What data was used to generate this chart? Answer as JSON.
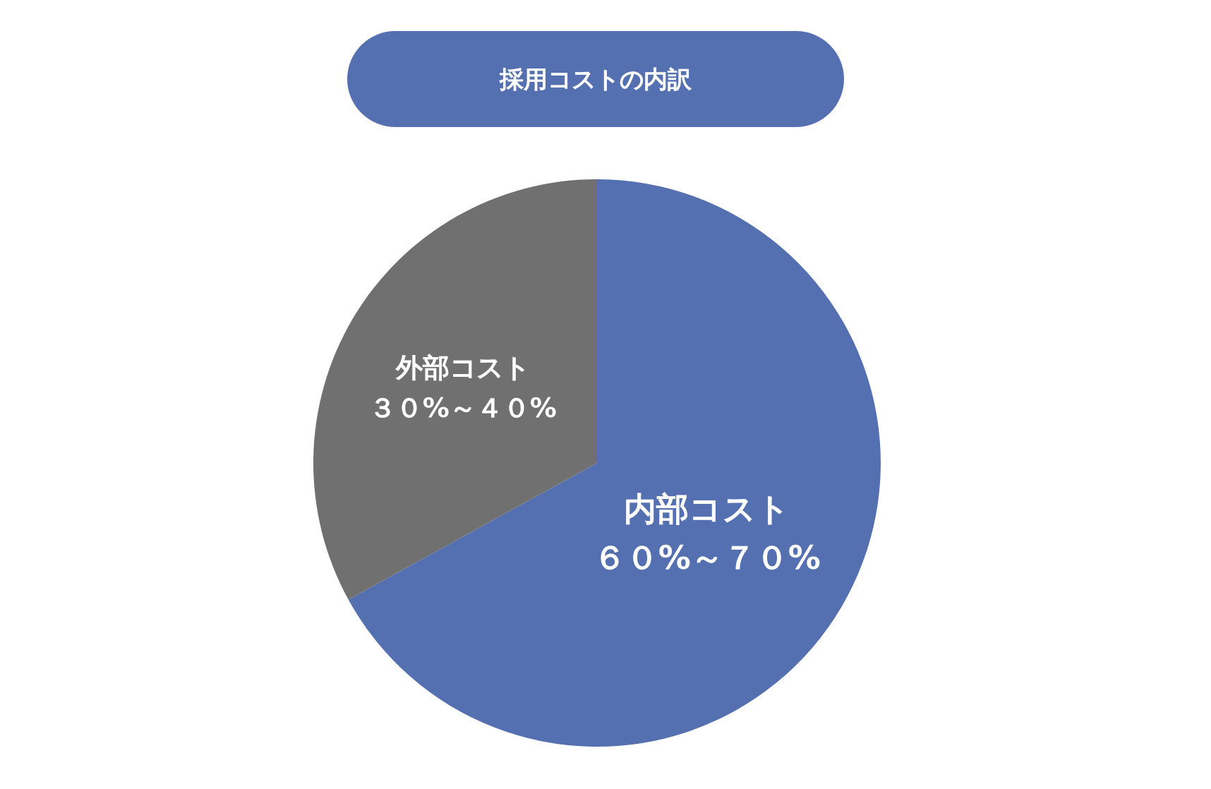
{
  "chart_data": {
    "type": "pie",
    "title": "採用コストの内訳",
    "categories": [
      "内部コスト",
      "外部コスト"
    ],
    "values": [
      67,
      33
    ],
    "colors": [
      "#5470b0",
      "#707070"
    ],
    "annotations": [
      "６０%～７０%",
      "３０%～４０%"
    ],
    "legend": false
  }
}
